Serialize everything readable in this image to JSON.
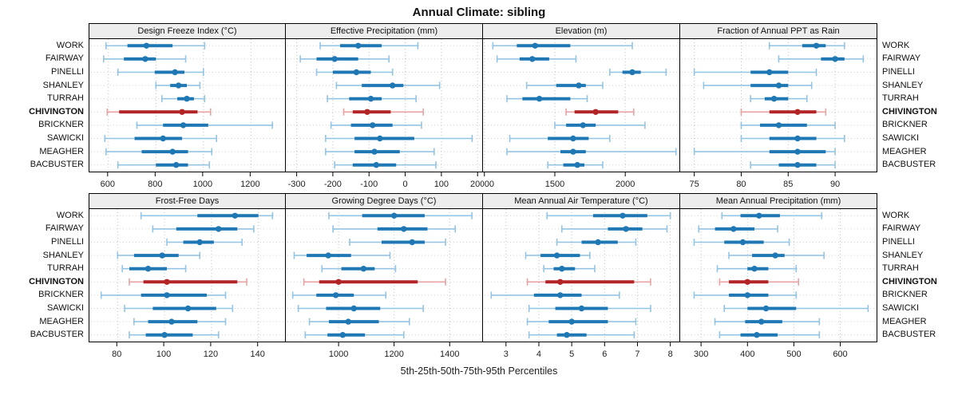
{
  "title": "Annual Climate: sibling",
  "caption": "5th-25th-50th-75th-95th Percentiles",
  "colors": {
    "normal_dark": "#1F78B4",
    "normal_light": "#94C4E4",
    "highlight_dark": "#B22426",
    "highlight_light": "#E8A2A2",
    "header_bg": "#EDEDED",
    "grid_v": "#BFBFBF",
    "grid_h": "#D2D2D2",
    "border": "#000000"
  },
  "sites": [
    "WORK",
    "FAIRWAY",
    "PINELLI",
    "SHANLEY",
    "TURRAH",
    "CHIVINGTON",
    "BRICKNER",
    "SAWICKI",
    "MEAGHER",
    "BACBUSTER"
  ],
  "highlight_site": "CHIVINGTON",
  "chart_data": {
    "type": "trellis-percentile-intervals",
    "percentiles": [
      5,
      25,
      50,
      75,
      95
    ],
    "legend_note": "light line = 5th-95th, thick line = 25th-75th, dot = 50th",
    "panels": [
      {
        "title": "Design Freeze Index (°C)",
        "row": 0,
        "xlim": [
          520,
          1350
        ],
        "ticks": [
          600,
          800,
          1000,
          1200
        ],
        "values": [
          [
            590,
            680,
            760,
            870,
            1005
          ],
          [
            580,
            665,
            755,
            800,
            925
          ],
          [
            640,
            795,
            880,
            920,
            1000
          ],
          [
            800,
            860,
            895,
            930,
            985
          ],
          [
            825,
            890,
            930,
            960,
            1005
          ],
          [
            595,
            645,
            910,
            975,
            1030
          ],
          [
            720,
            830,
            915,
            1020,
            1290
          ],
          [
            585,
            710,
            830,
            910,
            1055
          ],
          [
            590,
            740,
            870,
            935,
            1035
          ],
          [
            640,
            800,
            885,
            935,
            1025
          ]
        ]
      },
      {
        "title": "Effective Precipitation (mm)",
        "row": 0,
        "xlim": [
          -330,
          215
        ],
        "ticks": [
          -300,
          -200,
          -100,
          0,
          100,
          200
        ],
        "values": [
          [
            -235,
            -180,
            -130,
            -65,
            35
          ],
          [
            -290,
            -245,
            -195,
            -130,
            -45
          ],
          [
            -245,
            -200,
            -135,
            -95,
            -35
          ],
          [
            -190,
            -120,
            -35,
            -5,
            95
          ],
          [
            -215,
            -155,
            -95,
            -65,
            30
          ],
          [
            -170,
            -145,
            -105,
            -40,
            50
          ],
          [
            -205,
            -150,
            -90,
            -35,
            45
          ],
          [
            -220,
            -140,
            -70,
            25,
            185
          ],
          [
            -220,
            -140,
            -85,
            -15,
            80
          ],
          [
            -195,
            -145,
            -80,
            -25,
            85
          ]
        ]
      },
      {
        "title": "Elevation (m)",
        "row": 0,
        "xlim": [
          990,
          2390
        ],
        "ticks": [
          1000,
          1500,
          2000
        ],
        "values": [
          [
            1060,
            1230,
            1360,
            1610,
            2050
          ],
          [
            1090,
            1250,
            1340,
            1460,
            1650
          ],
          [
            1890,
            1980,
            2050,
            2110,
            2290
          ],
          [
            1300,
            1510,
            1670,
            1720,
            1840
          ],
          [
            1160,
            1270,
            1390,
            1610,
            1730
          ],
          [
            1580,
            1640,
            1790,
            1950,
            2060
          ],
          [
            1500,
            1580,
            1700,
            1790,
            2140
          ],
          [
            1180,
            1450,
            1630,
            1740,
            1890
          ],
          [
            1160,
            1540,
            1630,
            1720,
            2360
          ],
          [
            1450,
            1560,
            1660,
            1710,
            1840
          ]
        ]
      },
      {
        "title": "Fraction of Annual PPT as Rain",
        "row": 0,
        "xlim": [
          73.5,
          94.5
        ],
        "ticks": [
          75,
          80,
          85,
          90
        ],
        "values": [
          [
            83,
            86.5,
            88,
            89,
            91
          ],
          [
            84,
            88.5,
            90,
            91,
            93
          ],
          [
            75,
            81,
            83,
            85,
            88
          ],
          [
            76,
            81,
            84,
            85,
            87.5
          ],
          [
            81,
            82.5,
            83.5,
            85,
            87
          ],
          [
            80,
            83,
            86,
            88,
            89
          ],
          [
            80,
            82,
            84,
            87,
            90
          ],
          [
            80,
            83,
            86,
            88,
            91
          ],
          [
            75,
            83,
            86,
            89,
            90
          ],
          [
            81,
            84,
            86,
            88,
            90
          ]
        ]
      },
      {
        "title": "Frost-Free Days",
        "row": 1,
        "xlim": [
          68,
          152
        ],
        "ticks": [
          80,
          100,
          120,
          140
        ],
        "values": [
          [
            90,
            114,
            130,
            140,
            146
          ],
          [
            95,
            105,
            123,
            131,
            138
          ],
          [
            101,
            108,
            115,
            121,
            133
          ],
          [
            80,
            87,
            99,
            106,
            115
          ],
          [
            82,
            85,
            93,
            101,
            109
          ],
          [
            85,
            91,
            101,
            131,
            135
          ],
          [
            73,
            90,
            101,
            118,
            126
          ],
          [
            83,
            95,
            110,
            122,
            129
          ],
          [
            87,
            93,
            103,
            114,
            126
          ],
          [
            85,
            92,
            100,
            112,
            123
          ]
        ]
      },
      {
        "title": "Growing Degree Days (°C)",
        "row": 1,
        "xlim": [
          810,
          1520
        ],
        "ticks": [
          1000,
          1200,
          1400
        ],
        "values": [
          [
            965,
            1085,
            1200,
            1310,
            1480
          ],
          [
            980,
            1140,
            1235,
            1320,
            1420
          ],
          [
            1040,
            1155,
            1265,
            1310,
            1385
          ],
          [
            840,
            885,
            963,
            1045,
            1185
          ],
          [
            940,
            1010,
            1090,
            1130,
            1205
          ],
          [
            875,
            930,
            1000,
            1285,
            1385
          ],
          [
            835,
            920,
            990,
            1055,
            1170
          ],
          [
            855,
            955,
            1055,
            1150,
            1305
          ],
          [
            895,
            965,
            1035,
            1145,
            1255
          ],
          [
            880,
            960,
            1015,
            1095,
            1235
          ]
        ]
      },
      {
        "title": "Mean Annual Air Temperature (°C)",
        "row": 1,
        "xlim": [
          2.3,
          8.3
        ],
        "ticks": [
          3,
          4,
          5,
          6,
          7,
          8
        ],
        "values": [
          [
            4.25,
            5.65,
            6.55,
            7.3,
            8.0
          ],
          [
            4.7,
            6.1,
            6.65,
            7.15,
            7.9
          ],
          [
            4.55,
            5.3,
            5.8,
            6.4,
            6.95
          ],
          [
            3.6,
            4.05,
            4.55,
            5.25,
            5.55
          ],
          [
            4.15,
            4.45,
            4.7,
            5.1,
            5.7
          ],
          [
            3.65,
            4.2,
            4.65,
            6.9,
            7.4
          ],
          [
            2.55,
            3.85,
            4.65,
            5.3,
            6.45
          ],
          [
            3.7,
            4.5,
            5.3,
            6.1,
            7.4
          ],
          [
            3.65,
            4.3,
            5.0,
            6.1,
            6.95
          ],
          [
            3.7,
            4.55,
            4.85,
            5.45,
            6.9
          ]
        ]
      },
      {
        "title": "Mean Annual Precipitation (mm)",
        "row": 1,
        "xlim": [
          255,
          680
        ],
        "ticks": [
          300,
          400,
          500,
          600
        ],
        "values": [
          [
            345,
            385,
            425,
            470,
            560
          ],
          [
            295,
            330,
            370,
            415,
            465
          ],
          [
            285,
            350,
            390,
            435,
            490
          ],
          [
            360,
            410,
            460,
            480,
            565
          ],
          [
            335,
            400,
            415,
            445,
            505
          ],
          [
            340,
            360,
            400,
            445,
            510
          ],
          [
            285,
            360,
            400,
            445,
            505
          ],
          [
            350,
            400,
            440,
            505,
            660
          ],
          [
            330,
            395,
            430,
            475,
            555
          ],
          [
            340,
            385,
            420,
            465,
            555
          ]
        ]
      }
    ]
  }
}
